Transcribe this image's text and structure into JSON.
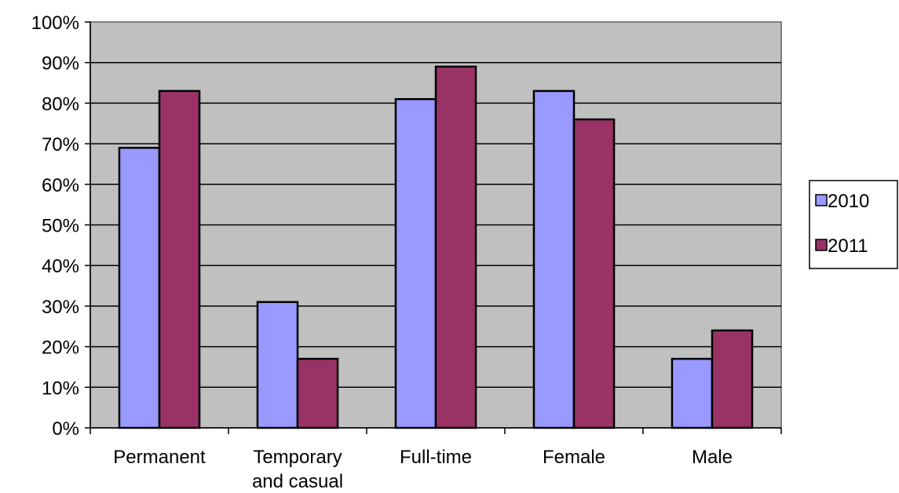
{
  "chart_data": {
    "type": "bar",
    "title": "",
    "xlabel": "",
    "ylabel": "",
    "categories": [
      [
        "Permanent"
      ],
      [
        "Temporary",
        "and casual"
      ],
      [
        "Full-time"
      ],
      [
        "Female"
      ],
      [
        "Male"
      ]
    ],
    "series": [
      {
        "name": "2010",
        "color": "#9999ff",
        "values": [
          69,
          31,
          81,
          83,
          17
        ]
      },
      {
        "name": "2011",
        "color": "#993366",
        "values": [
          83,
          17,
          89,
          76,
          24
        ]
      }
    ],
    "ylim": [
      0,
      100
    ],
    "yticks": [
      0,
      10,
      20,
      30,
      40,
      50,
      60,
      70,
      80,
      90,
      100
    ],
    "ytick_suffix": "%",
    "grid": true,
    "plot_background": "#c0c0c0",
    "legend_position": "right"
  }
}
